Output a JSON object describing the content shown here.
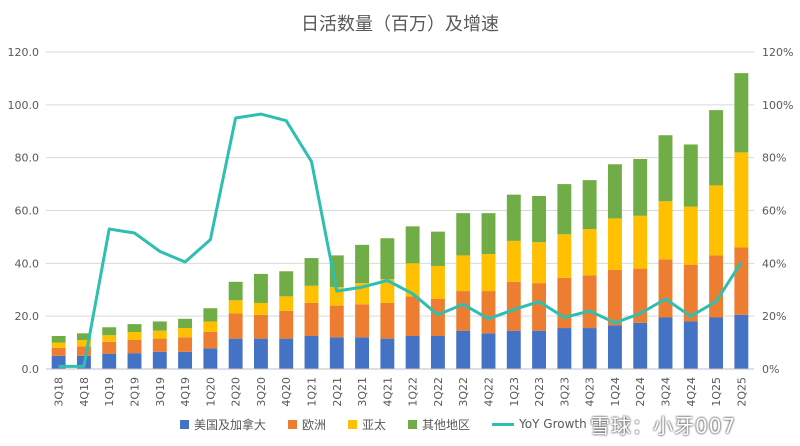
{
  "chart_data": {
    "type": "bar",
    "title": "日活数量（百万）及增速",
    "categories": [
      "3Q18",
      "4Q18",
      "1Q19",
      "2Q19",
      "3Q19",
      "4Q19",
      "1Q20",
      "2Q20",
      "3Q20",
      "4Q20",
      "1Q21",
      "2Q21",
      "3Q21",
      "4Q21",
      "1Q22",
      "2Q22",
      "3Q22",
      "4Q22",
      "1Q23",
      "2Q23",
      "3Q23",
      "4Q23",
      "1Q24",
      "2Q24",
      "3Q24",
      "4Q24",
      "1Q25",
      "2Q25"
    ],
    "stacked": true,
    "ylim": [
      0,
      120
    ],
    "y_ticks": [
      "0.0",
      "20.0",
      "40.0",
      "60.0",
      "80.0",
      "100.0",
      "120.0"
    ],
    "y2lim": [
      0,
      120
    ],
    "y2_ticks": [
      "0%",
      "20%",
      "40%",
      "60%",
      "80%",
      "100%",
      "120%"
    ],
    "grid": true,
    "legend_position": "bottom",
    "series": [
      {
        "name": "美国及加拿大",
        "color": "#4472C4",
        "values": [
          5.0,
          5.0,
          5.8,
          6.0,
          6.5,
          6.5,
          7.8,
          11.5,
          11.5,
          11.5,
          12.5,
          12.0,
          12.0,
          11.5,
          12.5,
          12.5,
          14.5,
          13.5,
          14.5,
          14.5,
          15.5,
          15.5,
          16.5,
          17.5,
          19.5,
          18.0,
          19.5,
          20.5
        ]
      },
      {
        "name": "欧洲",
        "color": "#ED7D31",
        "values": [
          3.0,
          3.5,
          4.5,
          5.0,
          5.0,
          5.5,
          6.2,
          9.5,
          9.0,
          10.5,
          12.5,
          12.0,
          12.5,
          13.5,
          15.0,
          14.0,
          15.0,
          16.0,
          18.5,
          18.0,
          19.0,
          20.0,
          21.0,
          20.5,
          22.0,
          21.5,
          23.5,
          25.5
        ]
      },
      {
        "name": "亚太",
        "color": "#FFC000",
        "values": [
          2.0,
          2.5,
          2.5,
          3.0,
          3.0,
          3.5,
          4.0,
          5.0,
          4.5,
          5.5,
          6.5,
          7.0,
          8.0,
          9.0,
          12.5,
          12.5,
          13.5,
          14.0,
          15.5,
          15.5,
          16.5,
          17.5,
          19.5,
          20.0,
          22.0,
          22.0,
          26.5,
          36.0
        ]
      },
      {
        "name": "其他地区",
        "color": "#70AD47",
        "values": [
          2.5,
          2.5,
          3.0,
          3.0,
          3.5,
          3.5,
          5.0,
          7.0,
          11.0,
          9.5,
          10.5,
          12.0,
          14.5,
          15.5,
          14.0,
          13.0,
          16.0,
          15.5,
          17.5,
          17.5,
          19.0,
          18.5,
          20.5,
          21.5,
          25.0,
          23.5,
          28.5,
          30.0
        ]
      }
    ],
    "line_series": {
      "name": "YoY Growth",
      "color": "#2EBFB1",
      "axis": "right",
      "values": [
        1,
        1,
        53,
        51.5,
        44.5,
        40.5,
        49,
        95,
        96.5,
        94,
        78.5,
        29.5,
        31,
        33.5,
        28.5,
        20.5,
        24.5,
        19,
        22.5,
        25.5,
        19.5,
        22,
        17.5,
        21,
        26.5,
        20,
        25.5,
        40.5
      ]
    }
  },
  "watermark": "雪球：小牙007"
}
